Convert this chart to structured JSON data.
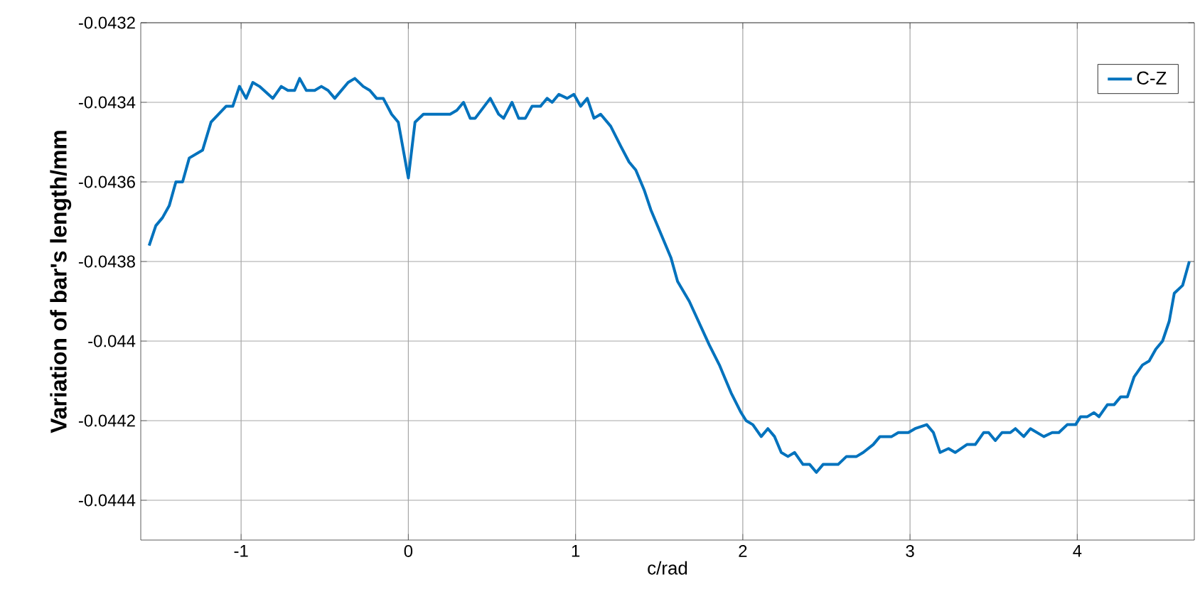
{
  "chart_data": {
    "type": "line",
    "xlabel": "c/rad",
    "ylabel": "Variation of bar's length/mm",
    "xlim": [
      -1.6,
      4.7
    ],
    "ylim": [
      -0.0445,
      -0.0432
    ],
    "xticks": [
      -1,
      0,
      1,
      2,
      3,
      4
    ],
    "yticks": [
      -0.0444,
      -0.0442,
      -0.044,
      -0.0438,
      -0.0436,
      -0.0434,
      -0.0432
    ],
    "grid": true,
    "legend": "top right",
    "marker": "none",
    "line_style": "solid",
    "x": [
      -1.55,
      -1.51,
      -1.47,
      -1.43,
      -1.39,
      -1.35,
      -1.31,
      -1.23,
      -1.18,
      -1.09,
      -1.05,
      -1.01,
      -0.97,
      -0.93,
      -0.89,
      -0.81,
      -0.76,
      -0.72,
      -0.68,
      -0.65,
      -0.61,
      -0.56,
      -0.52,
      -0.48,
      -0.44,
      -0.36,
      -0.32,
      -0.27,
      -0.23,
      -0.19,
      -0.15,
      -0.1,
      -0.06,
      0.0,
      0.04,
      0.09,
      0.25,
      0.29,
      0.33,
      0.37,
      0.4,
      0.49,
      0.54,
      0.57,
      0.62,
      0.66,
      0.7,
      0.74,
      0.79,
      0.83,
      0.86,
      0.9,
      0.95,
      0.99,
      1.03,
      1.07,
      1.11,
      1.15,
      1.21,
      1.27,
      1.32,
      1.36,
      1.41,
      1.45,
      1.52,
      1.57,
      1.61,
      1.68,
      1.8,
      1.86,
      1.93,
      1.99,
      2.02,
      2.06,
      2.11,
      2.15,
      2.19,
      2.23,
      2.27,
      2.31,
      2.36,
      2.4,
      2.44,
      2.48,
      2.57,
      2.62,
      2.68,
      2.72,
      2.78,
      2.82,
      2.89,
      2.93,
      2.99,
      3.03,
      3.1,
      3.14,
      3.18,
      3.23,
      3.27,
      3.34,
      3.39,
      3.44,
      3.47,
      3.51,
      3.55,
      3.6,
      3.63,
      3.68,
      3.72,
      3.8,
      3.85,
      3.89,
      3.94,
      3.99,
      4.02,
      4.06,
      4.1,
      4.13,
      4.18,
      4.22,
      4.26,
      4.3,
      4.34,
      4.39,
      4.43,
      4.47,
      4.51,
      4.55,
      4.58,
      4.63,
      4.67
    ],
    "series": [
      {
        "name": "C-Z",
        "color": "#0072bd",
        "values": [
          -0.04376,
          -0.04371,
          -0.04369,
          -0.04366,
          -0.0436,
          -0.0436,
          -0.04354,
          -0.04352,
          -0.04345,
          -0.04341,
          -0.04341,
          -0.04336,
          -0.04339,
          -0.04335,
          -0.04336,
          -0.04339,
          -0.04336,
          -0.04337,
          -0.04337,
          -0.04334,
          -0.04337,
          -0.04337,
          -0.04336,
          -0.04337,
          -0.04339,
          -0.04335,
          -0.04334,
          -0.04336,
          -0.04337,
          -0.04339,
          -0.04339,
          -0.04343,
          -0.04345,
          -0.04359,
          -0.04345,
          -0.04343,
          -0.04343,
          -0.04342,
          -0.0434,
          -0.04344,
          -0.04344,
          -0.04339,
          -0.04343,
          -0.04344,
          -0.0434,
          -0.04344,
          -0.04344,
          -0.04341,
          -0.04341,
          -0.04339,
          -0.0434,
          -0.04338,
          -0.04339,
          -0.04338,
          -0.04341,
          -0.04339,
          -0.04344,
          -0.04343,
          -0.04346,
          -0.04351,
          -0.04355,
          -0.04357,
          -0.04362,
          -0.04367,
          -0.04374,
          -0.04379,
          -0.04385,
          -0.0439,
          -0.04401,
          -0.04406,
          -0.04413,
          -0.04418,
          -0.0442,
          -0.04421,
          -0.04424,
          -0.04422,
          -0.04424,
          -0.04428,
          -0.04429,
          -0.04428,
          -0.04431,
          -0.04431,
          -0.04433,
          -0.04431,
          -0.04431,
          -0.04429,
          -0.04429,
          -0.04428,
          -0.04426,
          -0.04424,
          -0.04424,
          -0.04423,
          -0.04423,
          -0.04422,
          -0.04421,
          -0.04423,
          -0.04428,
          -0.04427,
          -0.04428,
          -0.04426,
          -0.04426,
          -0.04423,
          -0.04423,
          -0.04425,
          -0.04423,
          -0.04423,
          -0.04422,
          -0.04424,
          -0.04422,
          -0.04424,
          -0.04423,
          -0.04423,
          -0.04421,
          -0.04421,
          -0.04419,
          -0.04419,
          -0.04418,
          -0.04419,
          -0.04416,
          -0.04416,
          -0.04414,
          -0.04414,
          -0.04409,
          -0.04406,
          -0.04405,
          -0.04402,
          -0.044,
          -0.04395,
          -0.04388,
          -0.04386,
          -0.0438
        ]
      }
    ]
  }
}
